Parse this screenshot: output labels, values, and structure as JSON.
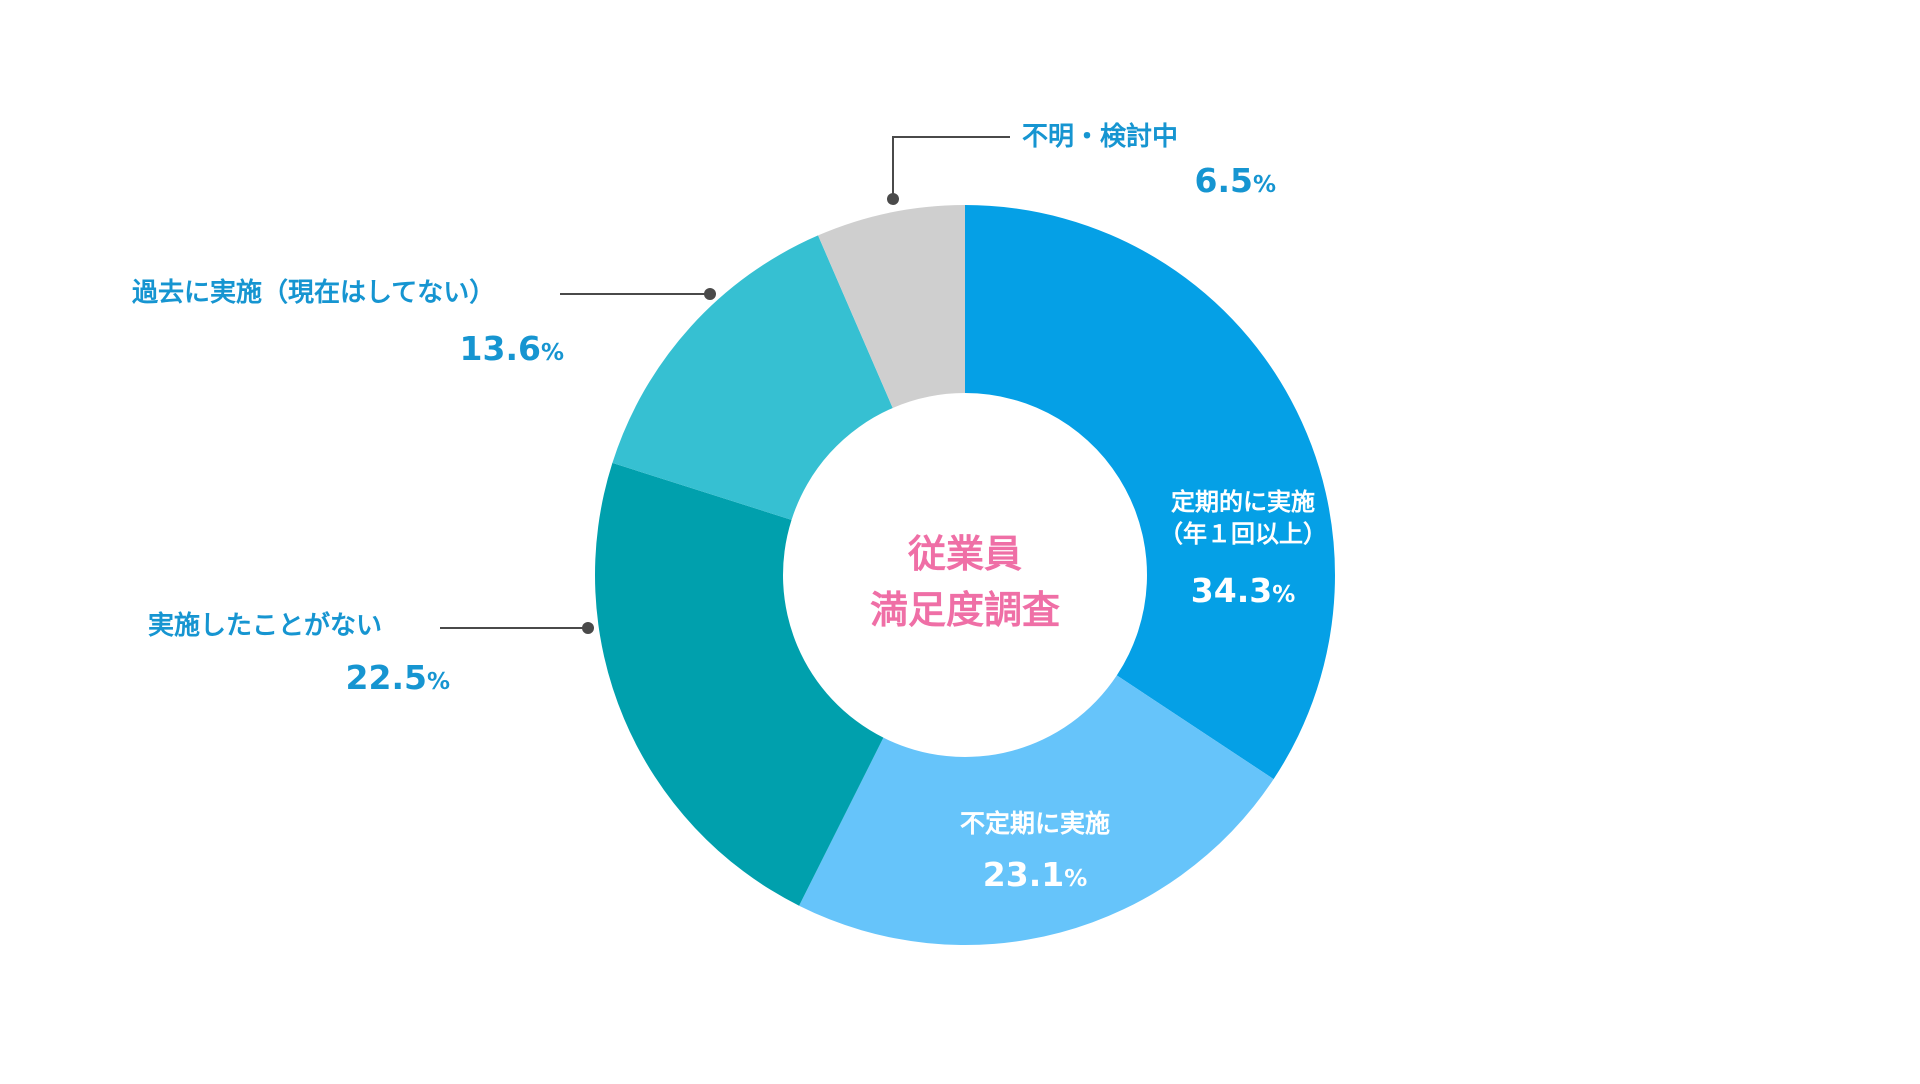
{
  "chart_data": {
    "type": "pie",
    "variant": "donut",
    "center_label": [
      "従業員",
      "満足度調査"
    ],
    "unit": "%",
    "segments": [
      {
        "label": [
          "定期的に実施",
          "（年１回以上）"
        ],
        "value": 34.3,
        "color": "#05a0e6",
        "label_position": "inside"
      },
      {
        "label": [
          "不定期に実施"
        ],
        "value": 23.1,
        "color": "#66c4fa",
        "label_position": "inside"
      },
      {
        "label": [
          "実施したことがない"
        ],
        "value": 22.5,
        "color": "#00a0ad",
        "label_position": "outside-left"
      },
      {
        "label": [
          "過去に実施（現在はしてない）"
        ],
        "value": 13.6,
        "color": "#36c0d2",
        "label_position": "outside-left"
      },
      {
        "label": [
          "不明・検討中"
        ],
        "value": 6.5,
        "color": "#cfcfcf",
        "label_position": "outside-top"
      }
    ],
    "start_angle_deg": 0,
    "direction": "clockwise",
    "colors": {
      "label_text": "#1695d1",
      "inside_text": "#ffffff",
      "center_text": "#ef6fa6",
      "leader_line": "#4a4a4a"
    }
  }
}
